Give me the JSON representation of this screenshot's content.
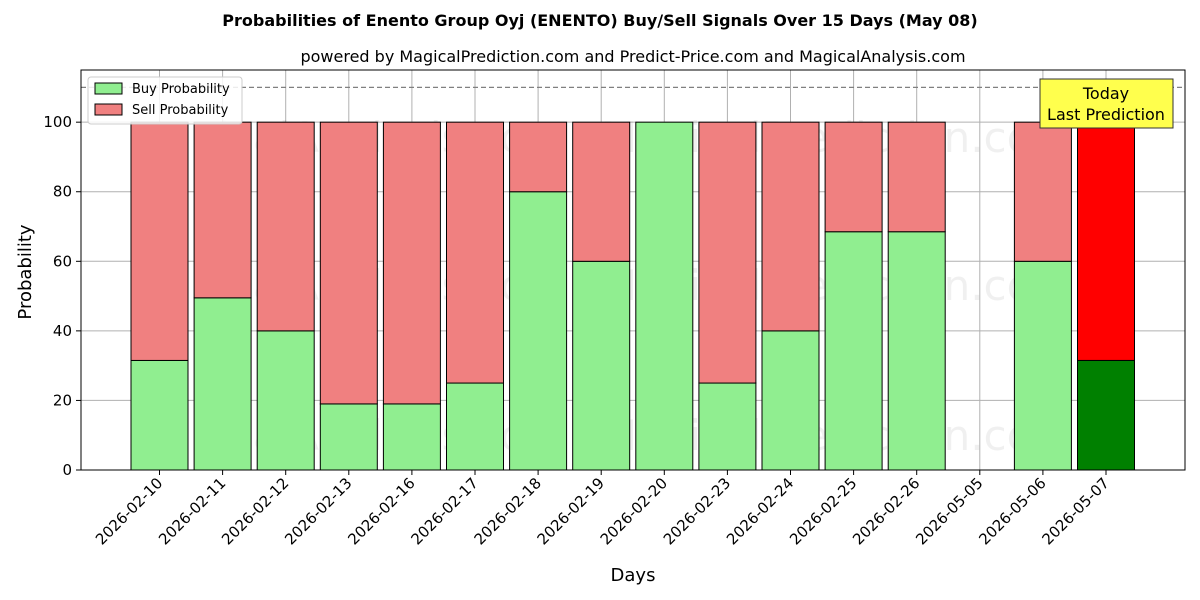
{
  "chart_data": {
    "type": "bar",
    "stacked": true,
    "title": "Probabilities of Enento Group Oyj (ENENTO) Buy/Sell Signals Over 15 Days (May 08)",
    "subtitle": "powered by MagicalPrediction.com and Predict-Price.com and MagicalAnalysis.com",
    "xlabel": "Days",
    "ylabel": "Probability",
    "ylim": [
      0,
      115
    ],
    "yticks": [
      0,
      20,
      40,
      60,
      80,
      100
    ],
    "threshold_line": 110,
    "grid": true,
    "legend_position": "top-left",
    "categories": [
      "2026-02-10",
      "2026-02-11",
      "2026-02-12",
      "2026-02-13",
      "2026-02-16",
      "2026-02-17",
      "2026-02-18",
      "2026-02-19",
      "2026-02-20",
      "2026-02-23",
      "2026-02-24",
      "2026-02-25",
      "2026-02-26",
      "2026-05-05",
      "2026-05-06",
      "2026-05-07"
    ],
    "series": [
      {
        "name": "Buy Probability",
        "color": "#90ee90",
        "today_color": "#008000",
        "values": [
          31.5,
          49.5,
          40,
          19,
          19,
          25,
          80,
          60,
          100,
          25,
          40,
          68.5,
          68.5,
          null,
          60,
          31.5
        ]
      },
      {
        "name": "Sell Probability",
        "color": "#f08080",
        "today_color": "#ff0000",
        "values": [
          68.5,
          50.5,
          60,
          81,
          81,
          75,
          20,
          40,
          0,
          75,
          60,
          31.5,
          31.5,
          null,
          40,
          68.5
        ]
      }
    ],
    "annotation": {
      "lines": [
        "Today",
        "Last Prediction"
      ],
      "background": "#ffff4d"
    },
    "watermarks": [
      "MagicalAnalysis.com",
      "MagicalPrediction.com"
    ]
  }
}
